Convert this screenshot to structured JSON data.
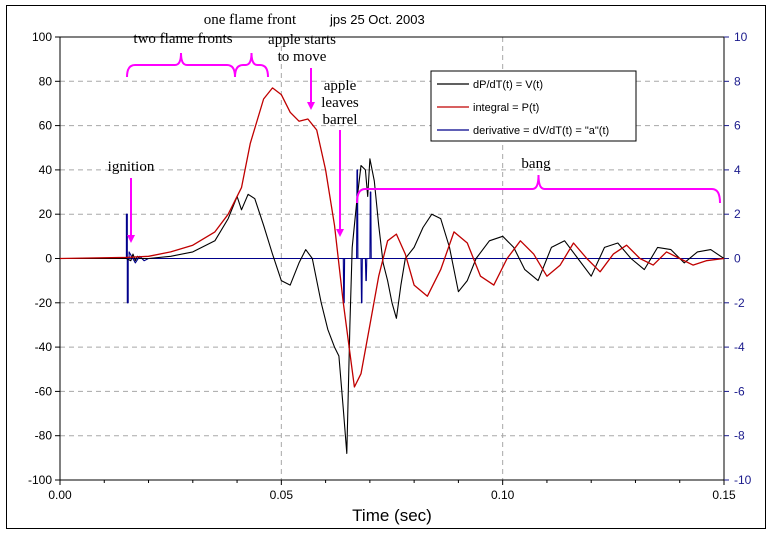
{
  "chart_data": {
    "type": "line",
    "title": "",
    "stamp": "jps 25 Oct. 2003",
    "xlabel": "Time (sec)",
    "ylabel": "",
    "xlim": [
      0,
      0.15
    ],
    "ylim": [
      -100,
      100
    ],
    "y2lim": [
      -10,
      10
    ],
    "xticks": [
      0,
      0.05,
      0.1,
      0.15
    ],
    "xtick_labels": [
      "0.00",
      "0.05",
      "0.10",
      "0.15"
    ],
    "yticks": [
      -100,
      -80,
      -60,
      -40,
      -20,
      0,
      20,
      40,
      60,
      80,
      100
    ],
    "y2ticks": [
      -10,
      -8,
      -6,
      -4,
      -2,
      0,
      2,
      4,
      6,
      8,
      10
    ],
    "grid": true,
    "legend_position": "top-right",
    "legend": [
      {
        "label": "dP/dT(t) = V(t)",
        "color": "#000000"
      },
      {
        "label": "integral = P(t)",
        "color": "#c00000"
      },
      {
        "label": "derivative = dV/dT(t) = \"a\"(t)",
        "color": "#00008b"
      }
    ],
    "series": [
      {
        "name": "dP/dT(t) = V(t)",
        "color": "#000000",
        "axis": "left",
        "x": [
          0.0,
          0.015,
          0.016,
          0.0165,
          0.017,
          0.0175,
          0.018,
          0.019,
          0.02,
          0.025,
          0.03,
          0.035,
          0.038,
          0.04,
          0.041,
          0.0425,
          0.044,
          0.046,
          0.048,
          0.05,
          0.052,
          0.054,
          0.0555,
          0.057,
          0.059,
          0.0605,
          0.062,
          0.063,
          0.064,
          0.0648,
          0.0655,
          0.066,
          0.067,
          0.068,
          0.069,
          0.0695,
          0.07,
          0.071,
          0.072,
          0.073,
          0.074,
          0.075,
          0.076,
          0.077,
          0.078,
          0.08,
          0.082,
          0.084,
          0.086,
          0.088,
          0.09,
          0.092,
          0.094,
          0.097,
          0.1,
          0.1025,
          0.105,
          0.108,
          0.111,
          0.114,
          0.117,
          0.12,
          0.123,
          0.126,
          0.129,
          0.132,
          0.135,
          0.138,
          0.141,
          0.144,
          0.147,
          0.15
        ],
        "y": [
          0,
          0,
          -1,
          2,
          -1,
          1,
          0,
          0,
          0,
          1,
          3,
          8,
          18,
          28,
          22,
          29,
          27,
          15,
          2,
          -10,
          -12,
          -2,
          4,
          0,
          -20,
          -32,
          -40,
          -44,
          -68,
          -88,
          -30,
          5,
          25,
          42,
          40,
          28,
          45,
          35,
          15,
          -2,
          -10,
          -20,
          -27,
          -12,
          0,
          5,
          14,
          20,
          18,
          5,
          -15,
          -10,
          0,
          8,
          10,
          5,
          -5,
          -10,
          5,
          8,
          0,
          -8,
          5,
          7,
          0,
          -5,
          5,
          4,
          -2,
          3,
          4,
          0
        ]
      },
      {
        "name": "integral = P(t)",
        "color": "#c00000",
        "axis": "left",
        "x": [
          0.0,
          0.015,
          0.02,
          0.025,
          0.03,
          0.035,
          0.038,
          0.041,
          0.043,
          0.046,
          0.048,
          0.05,
          0.052,
          0.054,
          0.056,
          0.058,
          0.06,
          0.062,
          0.064,
          0.0665,
          0.068,
          0.07,
          0.072,
          0.074,
          0.076,
          0.078,
          0.08,
          0.083,
          0.086,
          0.089,
          0.092,
          0.095,
          0.098,
          0.101,
          0.104,
          0.107,
          0.11,
          0.113,
          0.116,
          0.119,
          0.122,
          0.125,
          0.128,
          0.131,
          0.134,
          0.137,
          0.14,
          0.143,
          0.146,
          0.15
        ],
        "y": [
          0,
          0.5,
          1,
          3,
          6,
          12,
          20,
          32,
          52,
          72,
          77,
          74,
          66,
          62,
          63,
          58,
          40,
          15,
          -20,
          -58,
          -52,
          -30,
          -8,
          8,
          11,
          2,
          -12,
          -17,
          -5,
          12,
          7,
          -8,
          -12,
          0,
          8,
          2,
          -8,
          -3,
          7,
          0,
          -6,
          2,
          6,
          0,
          -3,
          3,
          0,
          -3,
          -1,
          0
        ]
      },
      {
        "name": "derivative = dV/dT(t) = \"a\"(t)",
        "color": "#00008b",
        "axis": "right",
        "x": [
          0.0,
          0.015,
          0.015,
          0.0152,
          0.0152,
          0.0154,
          0.0154,
          0.0156,
          0.0156,
          0.017,
          0.018,
          0.019,
          0.02,
          0.064,
          0.0641,
          0.0642,
          0.0643,
          0.067,
          0.0671,
          0.0672,
          0.0673,
          0.068,
          0.0681,
          0.0682,
          0.0683,
          0.069,
          0.0691,
          0.0692,
          0.0693,
          0.07,
          0.0701,
          0.0702,
          0.0703,
          0.15
        ],
        "y": [
          0,
          0,
          2,
          2,
          -2,
          -2,
          0,
          0,
          0.3,
          -0.2,
          0.1,
          -0.1,
          0,
          0,
          -2,
          -2,
          0,
          0,
          4,
          4,
          0,
          0,
          -2,
          -2,
          0,
          0,
          -1,
          -1,
          0,
          0,
          3,
          3,
          0,
          0
        ]
      }
    ],
    "annotations": [
      {
        "text": "ignition",
        "lines": [
          "ignition"
        ]
      },
      {
        "text": "two flame fronts",
        "lines": [
          "two flame fronts"
        ]
      },
      {
        "text": "one flame front",
        "lines": [
          "one flame front"
        ]
      },
      {
        "text": "apple starts to move",
        "lines": [
          "apple starts",
          "to move"
        ]
      },
      {
        "text": "apple leaves barrel",
        "lines": [
          "apple",
          "leaves",
          "barrel"
        ]
      },
      {
        "text": "bang",
        "lines": [
          "bang"
        ]
      }
    ]
  }
}
